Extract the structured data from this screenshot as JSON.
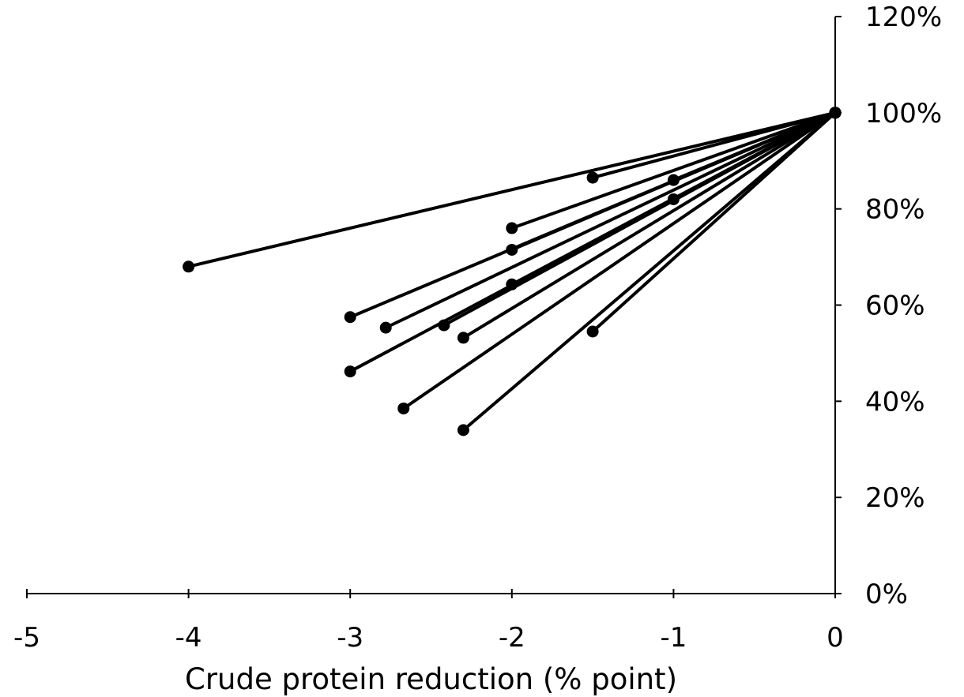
{
  "chart_data": {
    "type": "line",
    "title": "",
    "xlabel": "Crude protein reduction (% point)",
    "ylabel": "",
    "xlim": [
      -5,
      0
    ],
    "ylim": [
      0,
      1.2
    ],
    "x_ticks": [
      -5,
      -4,
      -3,
      -2,
      -1,
      0
    ],
    "x_tick_labels": [
      "-5",
      "-4",
      "-3",
      "-2",
      "-1",
      "0"
    ],
    "y_ticks": [
      0,
      0.2,
      0.4,
      0.6,
      0.8,
      1.0,
      1.2
    ],
    "y_tick_labels": [
      "0%",
      "20%",
      "40%",
      "60%",
      "80%",
      "100%",
      "120%"
    ],
    "y_axis_position": "right",
    "grid": false,
    "legend": "none",
    "series": [
      {
        "x": [
          -4.0,
          0
        ],
        "y": [
          0.68,
          1.0
        ]
      },
      {
        "x": [
          -2.0,
          0
        ],
        "y": [
          0.76,
          1.0
        ]
      },
      {
        "x": [
          -1.5,
          0
        ],
        "y": [
          0.865,
          1.0
        ]
      },
      {
        "x": [
          -1.0,
          0
        ],
        "y": [
          0.86,
          1.0
        ]
      },
      {
        "x": [
          -3.0,
          0
        ],
        "y": [
          0.575,
          1.0
        ]
      },
      {
        "x": [
          -2.0,
          0
        ],
        "y": [
          0.715,
          1.0
        ]
      },
      {
        "x": [
          -2.78,
          0
        ],
        "y": [
          0.553,
          1.0
        ]
      },
      {
        "x": [
          -1.0,
          0
        ],
        "y": [
          0.82,
          1.0
        ]
      },
      {
        "x": [
          -2.0,
          0
        ],
        "y": [
          0.643,
          1.0
        ]
      },
      {
        "x": [
          -2.42,
          0
        ],
        "y": [
          0.558,
          1.0
        ]
      },
      {
        "x": [
          -2.3,
          0
        ],
        "y": [
          0.532,
          1.0
        ]
      },
      {
        "x": [
          -3.0,
          0
        ],
        "y": [
          0.462,
          1.0
        ]
      },
      {
        "x": [
          -2.67,
          0
        ],
        "y": [
          0.385,
          1.0
        ]
      },
      {
        "x": [
          -2.3,
          0
        ],
        "y": [
          0.34,
          1.0
        ]
      },
      {
        "x": [
          -1.5,
          0
        ],
        "y": [
          0.545,
          1.0
        ]
      }
    ]
  }
}
